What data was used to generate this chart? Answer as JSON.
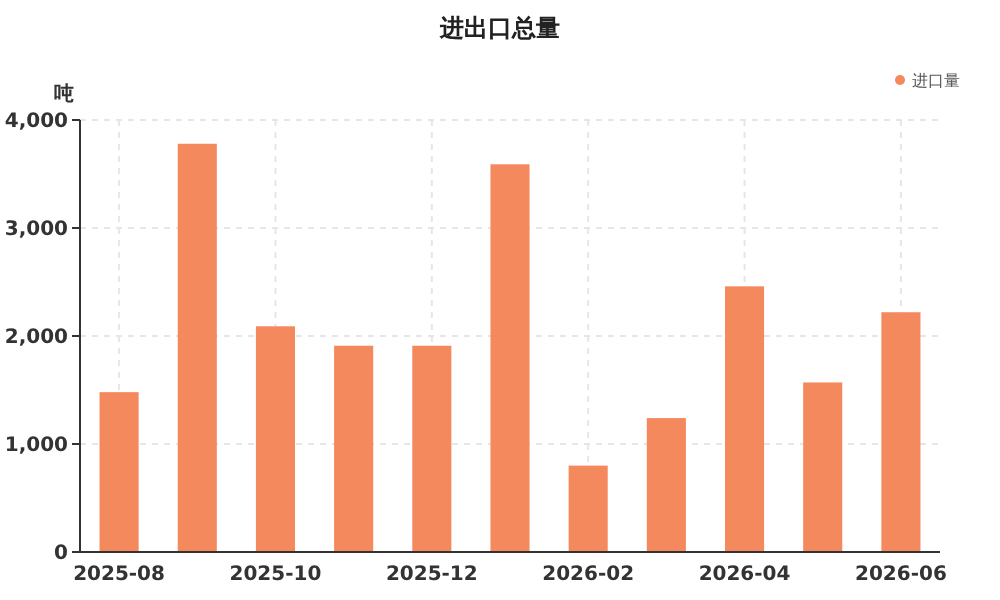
{
  "chart_data": {
    "type": "bar",
    "title": "进出口总量",
    "ylabel": "吨",
    "categories": [
      "2025-08",
      null,
      "2025-10",
      null,
      "2025-12",
      null,
      "2026-02",
      null,
      "2026-04",
      null,
      "2026-06"
    ],
    "series": [
      {
        "name": "进口量",
        "color": "#f5895e",
        "values": [
          1480,
          3780,
          2090,
          1910,
          1910,
          3590,
          800,
          1240,
          2460,
          1570,
          2220
        ]
      }
    ],
    "ylim": [
      0,
      4000
    ],
    "yticks": [
      0,
      {
        "value": 1000,
        "label": "1,000"
      },
      {
        "value": 2000,
        "label": "2,000"
      },
      {
        "value": 3000,
        "label": "3,000"
      },
      {
        "value": 4000,
        "label": "4,000"
      }
    ],
    "grid": true,
    "legend": "top right"
  }
}
